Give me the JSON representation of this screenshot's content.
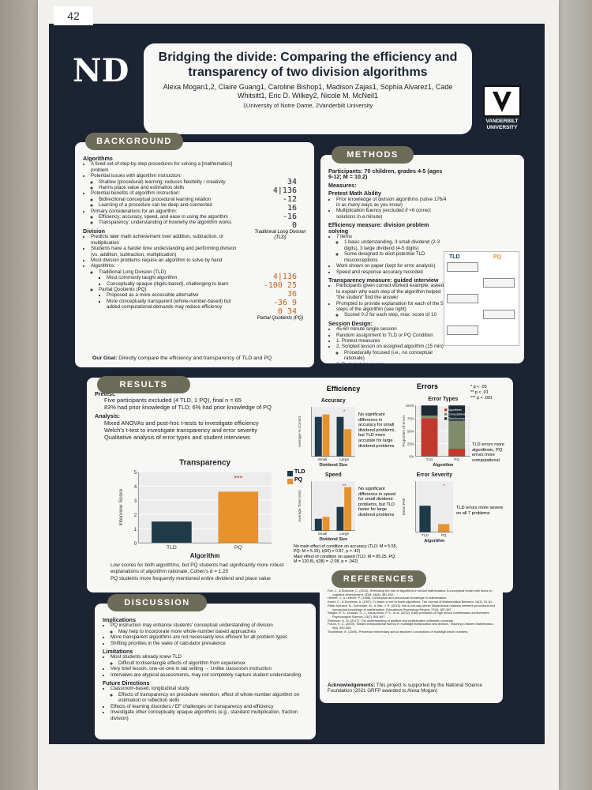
{
  "tag": "42",
  "header": {
    "logo_left": "ND",
    "title": "Bridging the divide: Comparing the efficiency and transparency of two division algorithms",
    "authors": "Alexa Mogan1,2, Claire Guang1, Caroline Bishop1, Madison Zajas1, Sophia Alvarez1, Cade Whitsitt1, Eric D. Wilkey2, Nicole M. McNeil1",
    "affiliations": "1University of Notre Dame, 2Vanderbilt University",
    "logo_right": "VANDERBILT UNIVERSITY"
  },
  "background": {
    "heading": "BACKGROUND",
    "blocks": [
      {
        "h": "Algorithms",
        "items": [
          "A fixed set of step-by-step procedures for solving a [mathematics] problem",
          {
            "text": "Potential issues with algorithm instruction:",
            "sub": [
              "Shallow (procedural) learning; reduces flexibility / creativity",
              "Harms place value and estimation skills"
            ]
          },
          {
            "text": "Potential benefits of algorithm instruction:",
            "sub": [
              "Bidirectional conceptual procedural learning relation",
              "Learning of a procedure can be deep and connected"
            ]
          },
          {
            "text": "Primary considerations for an algorithm:",
            "sub": [
              "Efficiency: accuracy, speed, and ease in using the algorithm",
              "Transparency: understanding of how/why the algorithm works"
            ]
          }
        ]
      },
      {
        "h": "Division",
        "items": [
          "Predicts later math achievement over addition, subtraction, or multiplication",
          "Students have a harder time understanding and performing division (vs. addition, subtraction, multiplication)",
          "Most division problems require an algorithm to solve by hand",
          {
            "text": "Algorithms:",
            "sub": [
              {
                "text": "Traditional Long Division (TLD)",
                "sub": [
                  "Most commonly taught algorithm",
                  "Conceptually opaque (digits-based), challenging to learn"
                ]
              },
              {
                "text": "Partial Quotients (PQ)",
                "sub": [
                  "Proposed as a more accessible alternative",
                  "More conceptually transparent (whole-number-based) but added computational demands may reduce efficiency"
                ]
              }
            ]
          }
        ]
      }
    ],
    "goal_label": "Our Goal:",
    "goal": "Directly compare the efficiency and transparency of TLD and PQ",
    "tld_example": {
      "lines": [
        "34",
        "4|136",
        "-12",
        "16",
        "-16",
        "0"
      ],
      "caption": "Traditional Long Division (TLD)"
    },
    "pq_example": {
      "lines": [
        "4|136",
        "-100   25",
        "36",
        "-36    9",
        "0    34"
      ],
      "caption": "Partial Quotients (PQ)"
    }
  },
  "methods": {
    "heading": "METHODS",
    "blocks": [
      {
        "h": "Participants: 70 children, grades 4-5 (ages 9-12; M = 10.2)",
        "items": []
      },
      {
        "h": "Measures:",
        "items": []
      },
      {
        "h": "Pretest Math Ability",
        "items": [
          "Prior knowledge of division algorithms (solve 176/4 in as many ways as you know)",
          "Multiplication fluency (excluded if <6 correct solutions in a minute)"
        ]
      },
      {
        "h": "Efficiency measure: division problem solving",
        "items": [
          {
            "text": "7 items",
            "sub": [
              "1 basic understanding, 3 small dividend (2-3 digits), 3 large dividend (4-5 digits)",
              "Some designed to elicit potential TLD misconceptions"
            ]
          },
          "Work shown on paper (kept for error analysis)",
          "Speed and response accuracy recorded"
        ]
      },
      {
        "h": "Transparency measure: guided interview",
        "items": [
          "Participants given correct worked example, asked to explain why each step of the algorithm helped “the student” find the answer",
          {
            "text": "Prompted to provide explanation for each of the 5 steps of the algorithm (see right)",
            "sub": [
              "Scored 0-2 for each step, max. score of 10"
            ]
          }
        ]
      },
      {
        "h": "Session Design:",
        "items": [
          "45-60 minute single session",
          "Random assignment to TLD or PQ Condition",
          "1. Pretest measures",
          {
            "text": "2. Scripted lesson on assigned algorithm (15 min)",
            "sub": [
              "Procedurally focused (i.e., no conceptual rationale)"
            ]
          },
          {
            "text": "3. Post-test measures",
            "sub": [
              "Problem-solving then guided interview"
            ]
          }
        ]
      }
    ],
    "diagram_labels": [
      "TLD",
      "PQ"
    ]
  },
  "results": {
    "heading": "RESULTS",
    "blocks": [
      {
        "h": "Pretest:",
        "items": [
          "Five participants excluded (4 TLD, 1 PQ), final n = 65",
          "83% had prior knowledge of TLD; 6% had prior knowledge of PQ"
        ]
      },
      {
        "h": "Analysis:",
        "items": [
          "Mixed ANOVAs and post-hoc t-tests to investigate efficiency",
          "Welch's t-test to investigate transparency and error severity",
          "Qualitative analysis of error types and student interviews"
        ]
      }
    ],
    "legend": [
      {
        "name": "TLD",
        "color": "#1f3b4a"
      },
      {
        "name": "PQ",
        "color": "#e8922e"
      }
    ],
    "transparency": {
      "title": "Transparency",
      "ylabel": "Interview Score",
      "xlabel": "Algorithm",
      "categories": [
        "TLD",
        "PQ"
      ],
      "values": [
        1.5,
        3.6
      ],
      "colors": [
        "#1f3b4a",
        "#e8922e"
      ],
      "ylim": [
        0,
        5
      ],
      "yticks": [
        0,
        1,
        2,
        3,
        4,
        5
      ],
      "sig": "***"
    },
    "transparency_notes": [
      "Low scores for both algorithms, but PQ students had significantly more robust explanations of algorithm rationale, Cohen's d = 1.20",
      "PQ students more frequently mentioned entire dividend and place value"
    ],
    "efficiency_heading": "Efficiency",
    "accuracy": {
      "title": "Accuracy",
      "ylabel": "Average % Correct",
      "xlabel": "Dividend Size",
      "categories": [
        "Small",
        "Large"
      ],
      "series": [
        {
          "values": [
            0.8,
            0.8
          ]
        },
        {
          "values": [
            0.85,
            0.55
          ]
        }
      ],
      "ylim": [
        0,
        1
      ],
      "sig": "*"
    },
    "accuracy_note": "No significant difference in accuracy for small dividend problems, but TLD more accurate for large dividend problems",
    "speed": {
      "title": "Speed",
      "ylabel": "Average Time (min)",
      "xlabel": "Dividend Size",
      "categories": [
        "Small",
        "Large"
      ],
      "series": [
        {
          "values": [
            0.6,
            1.2
          ]
        },
        {
          "values": [
            0.7,
            2.2
          ]
        }
      ],
      "ylim": [
        0,
        2.5
      ],
      "sig": "**"
    },
    "speed_note": "No significant difference in speed for small dividend problems, but TLD faster for large dividend problems",
    "efficiency_stats": [
      "No main effect of condition on accuracy (TLD: M = 5.55, PQ: M = 5.15), t(60) = 0.87, p = .42)",
      "Main effect of condition on speed (TLD: M = 85.25, PQ: M = 120.8), t(38) = -2.08, p = .042)"
    ],
    "errors_heading": "Errors",
    "p_legend": [
      "* p < .05",
      "** p < .01",
      "*** p < .001"
    ],
    "error_types": {
      "title": "Error Types",
      "ylabel": "Proportion of errors",
      "xlabel": "Algorithm",
      "stacked": true,
      "categories": [
        "TLD",
        "PQ"
      ],
      "series": [
        {
          "name": "Algorithmic",
          "color": "#c0392b",
          "values": [
            75,
            15
          ]
        },
        {
          "name": "Computational",
          "color": "#7f8c6a",
          "values": [
            5,
            55
          ]
        },
        {
          "name": "Other/Incomplete",
          "color": "#1c2a33",
          "values": [
            20,
            30
          ]
        }
      ],
      "ylim": [
        0,
        100
      ],
      "yticks": [
        {
          "value": 0,
          "label": "0%"
        },
        {
          "value": 25,
          "label": "25%"
        },
        {
          "value": 50,
          "label": "50%"
        },
        {
          "value": 75,
          "label": "75%"
        },
        {
          "value": 100,
          "label": "100%"
        }
      ]
    },
    "error_types_note": "TLD errors more algorithmic, PQ errors more computational",
    "error_severity": {
      "title": "Error Severity",
      "ylabel": "Mean PAE",
      "xlabel": "Algorithm",
      "categories": [
        "TLD",
        "PQ"
      ],
      "values": [
        1.3,
        0.4
      ],
      "colors": [
        "#1f3b4a",
        "#e8922e"
      ],
      "ylim": [
        0,
        2.5
      ],
      "sig": "*"
    },
    "error_severity_note": "TLD errors more severe on all 7 problems"
  },
  "discussion": {
    "heading": "DISCUSSION",
    "blocks": [
      {
        "h": "Implications",
        "items": [
          {
            "text": "PQ instruction may enhance students' conceptual understanding of division",
            "sub": [
              "May help to incorporate more whole-number based approaches"
            ]
          },
          "More transparent algorithms are not necessarily less efficient for all problem types",
          "Shifting priorities in the wake of calculator prevalence"
        ]
      },
      {
        "h": "Limitations",
        "items": [
          {
            "text": "Most students already knew TLD",
            "sub": [
              "Difficult to disentangle effects of algorithm from experience"
            ]
          },
          "Very brief lesson, one-on-one in lab setting → Unlike classroom instruction",
          "Interviews are atypical assessments, may not completely capture student understanding"
        ]
      },
      {
        "h": "Future Directions",
        "items": [
          {
            "text": "Classroom-based, longitudinal study",
            "sub": [
              "Effects of transparency on procedure retention, effect of whole-number algorithm on estimation or reflection skills"
            ]
          },
          "Effects of learning disorders / EF challenges on transparency and efficiency",
          "Investigate other conceptually opaque algorithms (e.g., standard multiplication, fraction division)"
        ]
      }
    ]
  },
  "references": {
    "heading": "REFERENCES",
    "items": [
      "Fan, L., & Bokhove, C. (2014). Rethinking the role of algorithms in school mathematics: A conceptual model with focus on cognitive development. ZDM, 46(3), 481-492.",
      "Hiebert, J., & Lefevre, P. (1986). Conceptual and procedural knowledge in mathematics.",
      "Kamii, C., & Dominick, A. (1997). To teach or not to teach algorithms. The Journal of Mathematical Behavior, 16(1), 51-61.",
      "Rittle-Johnson, B., Schneider, M., & Star, J. R. (2015). Not a one-way street: Bidirectional relations between procedural and conceptual knowledge of mathematics. Educational Psychology Review, 27(4), 587-597.",
      "Siegler, R. S., Duncan, G. J., Davis-Kean, P. E., et al. (2012). Early predictors of high school mathematics achievement. Psychological Science, 23(7), 691-697.",
      "Robinson, K. M. (2017). The understanding of additive and multiplicative arithmetic concepts.",
      "Fuson, K. C. (2003). Toward computational fluency in multidigit multiplication and division. Teaching Children Mathematics, 9(6), 300-305.",
      "Thanheiser, E. (2009). Preservice elementary school teachers' conceptions of multidigit whole numbers."
    ],
    "ack_label": "Acknowledgements:",
    "ack": "This project is supported by the National Science Foundation (2021 GRFP awarded to Alexa Mogan)"
  }
}
